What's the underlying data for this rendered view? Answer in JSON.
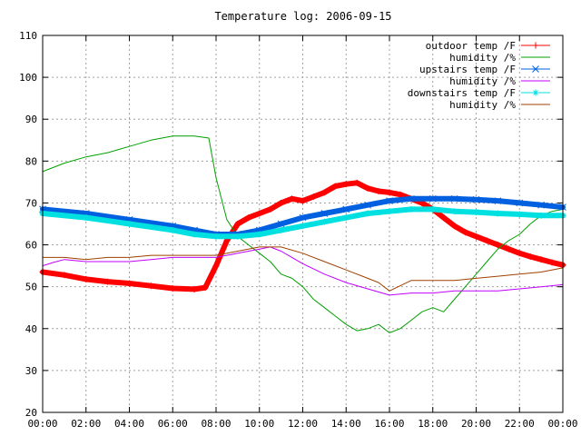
{
  "chart_data": {
    "type": "line",
    "title": "Temperature log: 2006-09-15",
    "xlabel": "",
    "ylabel": "",
    "xlim": [
      "00:00",
      "24:00"
    ],
    "ylim": [
      20,
      110
    ],
    "grid": true,
    "legend_position": "top-right",
    "x_ticks": [
      "00:00",
      "02:00",
      "04:00",
      "06:00",
      "08:00",
      "10:00",
      "12:00",
      "14:00",
      "16:00",
      "18:00",
      "20:00",
      "22:00",
      "00:00"
    ],
    "y_ticks": [
      20,
      30,
      40,
      50,
      60,
      70,
      80,
      90,
      100,
      110
    ],
    "series": [
      {
        "name": "outdoor temp /F",
        "color": "#ff0000",
        "marker": "plus",
        "thick": true,
        "x": [
          "00:00",
          "01:00",
          "02:00",
          "03:00",
          "04:00",
          "05:00",
          "06:00",
          "07:00",
          "07:30",
          "08:00",
          "08:30",
          "09:00",
          "09:30",
          "10:00",
          "10:30",
          "11:00",
          "11:30",
          "12:00",
          "12:30",
          "13:00",
          "13:30",
          "14:00",
          "14:30",
          "15:00",
          "15:30",
          "16:00",
          "16:30",
          "17:00",
          "17:30",
          "18:00",
          "18:30",
          "19:00",
          "19:30",
          "20:00",
          "20:30",
          "21:00",
          "21:30",
          "22:00",
          "22:30",
          "23:00",
          "23:30",
          "24:00"
        ],
        "y": [
          53.5,
          52.8,
          51.8,
          51.2,
          50.8,
          50.2,
          49.6,
          49.4,
          49.8,
          55.0,
          61.0,
          65.0,
          66.5,
          67.5,
          68.5,
          70.0,
          71.0,
          70.5,
          71.5,
          72.5,
          74.0,
          74.5,
          74.8,
          73.5,
          72.8,
          72.5,
          72.0,
          71.0,
          70.0,
          68.5,
          66.5,
          64.5,
          63.0,
          62.0,
          61.0,
          60.0,
          59.0,
          58.0,
          57.2,
          56.5,
          55.8,
          55.2
        ]
      },
      {
        "name": "humidity /%",
        "color": "#00a000",
        "marker": "none",
        "thick": false,
        "x": [
          "00:00",
          "01:00",
          "02:00",
          "03:00",
          "04:00",
          "05:00",
          "06:00",
          "07:00",
          "07:40",
          "08:00",
          "08:30",
          "09:00",
          "09:30",
          "10:00",
          "10:30",
          "11:00",
          "11:30",
          "12:00",
          "12:30",
          "13:00",
          "13:30",
          "14:00",
          "14:30",
          "15:00",
          "15:30",
          "16:00",
          "16:30",
          "17:00",
          "17:30",
          "18:00",
          "18:30",
          "19:00",
          "19:30",
          "20:00",
          "20:30",
          "21:00",
          "21:30",
          "22:00",
          "22:30",
          "23:00",
          "23:30",
          "24:00"
        ],
        "y": [
          77.5,
          79.5,
          81.0,
          82.0,
          83.5,
          85.0,
          86.0,
          86.0,
          85.5,
          76.0,
          66.0,
          62.0,
          60.0,
          58.0,
          56.0,
          53.0,
          52.0,
          50.0,
          47.0,
          45.0,
          43.0,
          41.0,
          39.5,
          40.0,
          41.0,
          39.0,
          40.0,
          42.0,
          44.0,
          45.0,
          44.0,
          47.0,
          50.0,
          53.0,
          56.0,
          59.0,
          61.0,
          62.5,
          65.0,
          67.0,
          68.0,
          68.5
        ]
      },
      {
        "name": "upstairs temp /F",
        "color": "#0060e0",
        "marker": "x",
        "thick": true,
        "x": [
          "00:00",
          "02:00",
          "04:00",
          "06:00",
          "07:00",
          "08:00",
          "09:00",
          "10:00",
          "11:00",
          "12:00",
          "13:00",
          "14:00",
          "15:00",
          "16:00",
          "17:00",
          "18:00",
          "19:00",
          "20:00",
          "21:00",
          "22:00",
          "23:00",
          "24:00"
        ],
        "y": [
          68.5,
          67.5,
          66.0,
          64.5,
          63.5,
          62.5,
          62.5,
          63.5,
          65.0,
          66.5,
          67.5,
          68.5,
          69.5,
          70.5,
          71.0,
          71.0,
          71.0,
          70.8,
          70.5,
          70.0,
          69.5,
          69.0
        ]
      },
      {
        "name": "humidity /%",
        "color": "#c000ff",
        "marker": "none",
        "thick": false,
        "x": [
          "00:00",
          "00:30",
          "01:00",
          "02:00",
          "03:00",
          "04:00",
          "05:00",
          "06:00",
          "07:00",
          "08:00",
          "09:00",
          "10:00",
          "10:30",
          "11:00",
          "11:30",
          "12:00",
          "13:00",
          "14:00",
          "15:00",
          "16:00",
          "17:00",
          "18:00",
          "19:00",
          "20:00",
          "21:00",
          "22:00",
          "23:00",
          "24:00"
        ],
        "y": [
          55.0,
          55.8,
          56.5,
          56.0,
          56.0,
          56.0,
          56.5,
          57.0,
          57.0,
          57.0,
          58.0,
          59.0,
          59.5,
          58.5,
          57.0,
          55.5,
          53.0,
          51.0,
          49.5,
          48.0,
          48.5,
          48.5,
          49.0,
          49.0,
          49.0,
          49.5,
          50.0,
          50.5
        ]
      },
      {
        "name": "downstairs temp /F",
        "color": "#00e0e0",
        "marker": "star",
        "thick": true,
        "x": [
          "00:00",
          "02:00",
          "04:00",
          "06:00",
          "07:00",
          "08:00",
          "09:00",
          "10:00",
          "11:00",
          "12:00",
          "13:00",
          "14:00",
          "15:00",
          "16:00",
          "17:00",
          "18:00",
          "19:00",
          "20:00",
          "21:00",
          "22:00",
          "23:00",
          "24:00"
        ],
        "y": [
          67.5,
          66.5,
          65.0,
          63.5,
          62.5,
          62.0,
          62.0,
          62.5,
          63.5,
          64.5,
          65.5,
          66.5,
          67.5,
          68.0,
          68.5,
          68.5,
          68.0,
          67.8,
          67.5,
          67.3,
          67.0,
          67.0
        ]
      },
      {
        "name": "humidity /%",
        "color": "#a04000",
        "marker": "none",
        "thick": false,
        "x": [
          "00:00",
          "01:00",
          "02:00",
          "03:00",
          "04:00",
          "05:00",
          "06:00",
          "07:00",
          "08:00",
          "09:00",
          "10:00",
          "11:00",
          "12:00",
          "13:00",
          "14:00",
          "15:00",
          "15:30",
          "16:00",
          "17:00",
          "18:00",
          "19:00",
          "20:00",
          "21:00",
          "22:00",
          "23:00",
          "24:00"
        ],
        "y": [
          57.0,
          57.0,
          56.5,
          57.0,
          57.0,
          57.5,
          57.5,
          57.5,
          57.5,
          58.5,
          59.5,
          59.5,
          58.0,
          56.0,
          54.0,
          52.0,
          51.0,
          49.0,
          51.5,
          51.5,
          51.5,
          52.0,
          52.5,
          53.0,
          53.5,
          54.5
        ]
      }
    ]
  }
}
